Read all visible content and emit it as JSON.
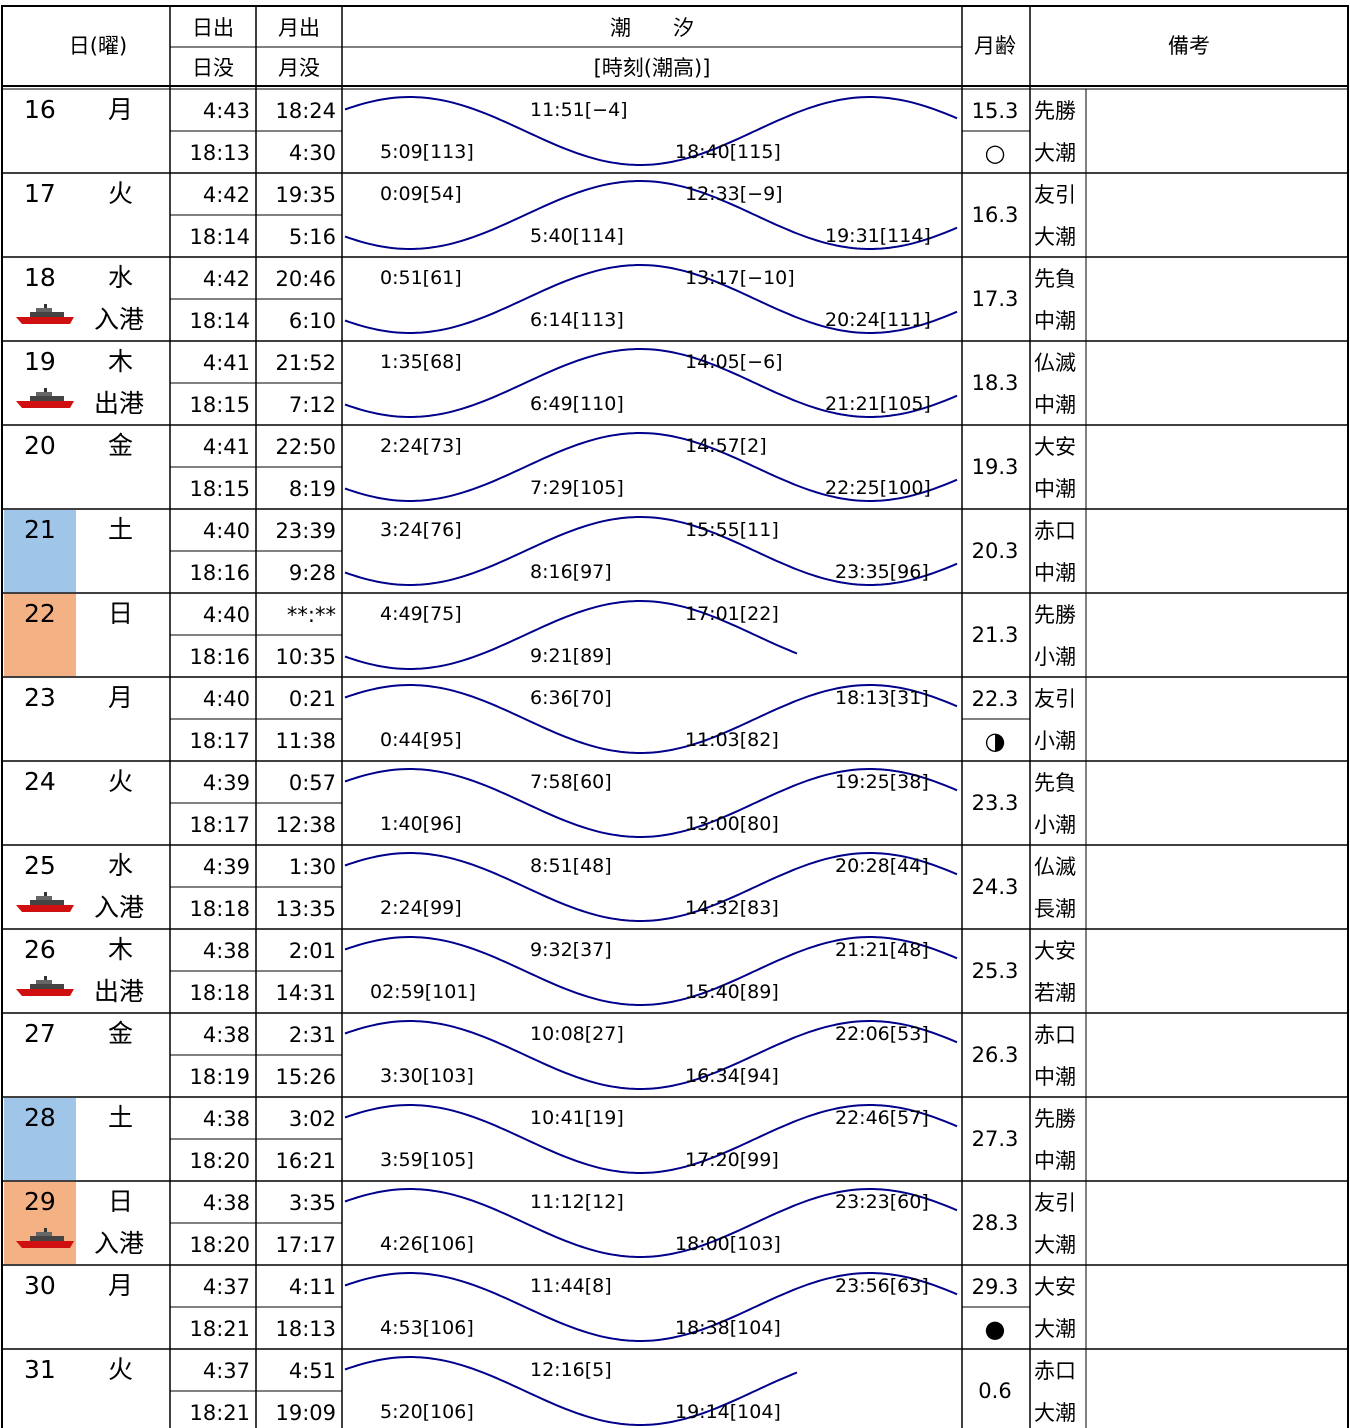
{
  "header": {
    "day": "日(曜)",
    "sunrise": "日出",
    "sunset": "日没",
    "moonrise": "月出",
    "moonset": "月没",
    "tide": "潮　　汐",
    "tide_sub": "[時刻(潮高)]",
    "moon_age": "月齢",
    "remarks": "備考"
  },
  "colors": {
    "saturday": "#9fc5e8",
    "sunday": "#f4b183",
    "tide_curve": "#00008b",
    "ship_hull": "#d01010"
  },
  "rows": [
    {
      "day": "16",
      "dow": "月",
      "note": "",
      "ship": false,
      "hl": "",
      "sunrise": "4:43",
      "moonrise": "18:24",
      "sunset": "18:13",
      "moonset": "4:30",
      "tide": [
        {
          "t": "5:09[113]",
          "pos": "low"
        },
        {
          "t": "11:51[−4]",
          "pos": "high"
        },
        {
          "t": "18:40[115]",
          "pos": "low"
        }
      ],
      "curve": "sine-up",
      "moon": "15.3",
      "moon_symbol": "○",
      "rokuyo": "先勝",
      "shio": "大潮"
    },
    {
      "day": "17",
      "dow": "火",
      "note": "",
      "ship": false,
      "hl": "",
      "sunrise": "4:42",
      "moonrise": "19:35",
      "sunset": "18:14",
      "moonset": "5:16",
      "tide": [
        {
          "t": "0:09[54]",
          "pos": "high"
        },
        {
          "t": "5:40[114]",
          "pos": "low"
        },
        {
          "t": "12:33[−9]",
          "pos": "high"
        },
        {
          "t": "19:31[114]",
          "pos": "low"
        }
      ],
      "curve": "sine-down",
      "moon": "16.3",
      "moon_symbol": "",
      "rokuyo": "友引",
      "shio": "大潮"
    },
    {
      "day": "18",
      "dow": "水",
      "note": "入港",
      "ship": true,
      "hl": "",
      "sunrise": "4:42",
      "moonrise": "20:46",
      "sunset": "18:14",
      "moonset": "6:10",
      "tide": [
        {
          "t": "0:51[61]",
          "pos": "high"
        },
        {
          "t": "6:14[113]",
          "pos": "low"
        },
        {
          "t": "13:17[−10]",
          "pos": "high"
        },
        {
          "t": "20:24[111]",
          "pos": "low"
        }
      ],
      "curve": "sine-down",
      "moon": "17.3",
      "moon_symbol": "",
      "rokuyo": "先負",
      "shio": "中潮"
    },
    {
      "day": "19",
      "dow": "木",
      "note": "出港",
      "ship": true,
      "hl": "",
      "sunrise": "4:41",
      "moonrise": "21:52",
      "sunset": "18:15",
      "moonset": "7:12",
      "tide": [
        {
          "t": "1:35[68]",
          "pos": "high"
        },
        {
          "t": "6:49[110]",
          "pos": "low"
        },
        {
          "t": "14:05[−6]",
          "pos": "high"
        },
        {
          "t": "21:21[105]",
          "pos": "low"
        }
      ],
      "curve": "sine-down",
      "moon": "18.3",
      "moon_symbol": "",
      "rokuyo": "仏滅",
      "shio": "中潮"
    },
    {
      "day": "20",
      "dow": "金",
      "note": "",
      "ship": false,
      "hl": "",
      "sunrise": "4:41",
      "moonrise": "22:50",
      "sunset": "18:15",
      "moonset": "8:19",
      "tide": [
        {
          "t": "2:24[73]",
          "pos": "high"
        },
        {
          "t": "7:29[105]",
          "pos": "low"
        },
        {
          "t": "14:57[2]",
          "pos": "high"
        },
        {
          "t": "22:25[100]",
          "pos": "low"
        }
      ],
      "curve": "sine-down",
      "moon": "19.3",
      "moon_symbol": "",
      "rokuyo": "大安",
      "shio": "中潮"
    },
    {
      "day": "21",
      "dow": "土",
      "note": "",
      "ship": false,
      "hl": "sat",
      "sunrise": "4:40",
      "moonrise": "23:39",
      "sunset": "18:16",
      "moonset": "9:28",
      "tide": [
        {
          "t": "3:24[76]",
          "pos": "high"
        },
        {
          "t": "8:16[97]",
          "pos": "low"
        },
        {
          "t": "15:55[11]",
          "pos": "high"
        },
        {
          "t": "23:35[96]",
          "pos": "low"
        }
      ],
      "curve": "sine-down",
      "moon": "20.3",
      "moon_symbol": "",
      "rokuyo": "赤口",
      "shio": "中潮"
    },
    {
      "day": "22",
      "dow": "日",
      "note": "",
      "ship": false,
      "hl": "sun",
      "sunrise": "4:40",
      "moonrise": "**:**",
      "sunset": "18:16",
      "moonset": "10:35",
      "tide": [
        {
          "t": "4:49[75]",
          "pos": "high"
        },
        {
          "t": "9:21[89]",
          "pos": "low"
        },
        {
          "t": "17:01[22]",
          "pos": "high"
        }
      ],
      "curve": "sine-down-short",
      "moon": "21.3",
      "moon_symbol": "",
      "rokuyo": "先勝",
      "shio": "小潮"
    },
    {
      "day": "23",
      "dow": "月",
      "note": "",
      "ship": false,
      "hl": "",
      "sunrise": "4:40",
      "moonrise": "0:21",
      "sunset": "18:17",
      "moonset": "11:38",
      "tide": [
        {
          "t": "0:44[95]",
          "pos": "low"
        },
        {
          "t": "6:36[70]",
          "pos": "high"
        },
        {
          "t": "11:03[82]",
          "pos": "low"
        },
        {
          "t": "18:13[31]",
          "pos": "high"
        }
      ],
      "curve": "sine-up",
      "moon": "22.3",
      "moon_symbol": "◑",
      "rokuyo": "友引",
      "shio": "小潮"
    },
    {
      "day": "24",
      "dow": "火",
      "note": "",
      "ship": false,
      "hl": "",
      "sunrise": "4:39",
      "moonrise": "0:57",
      "sunset": "18:17",
      "moonset": "12:38",
      "tide": [
        {
          "t": "1:40[96]",
          "pos": "low"
        },
        {
          "t": "7:58[60]",
          "pos": "high"
        },
        {
          "t": "13:00[80]",
          "pos": "low"
        },
        {
          "t": "19:25[38]",
          "pos": "high"
        }
      ],
      "curve": "sine-up",
      "moon": "23.3",
      "moon_symbol": "",
      "rokuyo": "先負",
      "shio": "小潮"
    },
    {
      "day": "25",
      "dow": "水",
      "note": "入港",
      "ship": true,
      "hl": "",
      "sunrise": "4:39",
      "moonrise": "1:30",
      "sunset": "18:18",
      "moonset": "13:35",
      "tide": [
        {
          "t": "2:24[99]",
          "pos": "low"
        },
        {
          "t": "8:51[48]",
          "pos": "high"
        },
        {
          "t": "14:32[83]",
          "pos": "low"
        },
        {
          "t": "20:28[44]",
          "pos": "high"
        }
      ],
      "curve": "sine-up",
      "moon": "24.3",
      "moon_symbol": "",
      "rokuyo": "仏滅",
      "shio": "長潮"
    },
    {
      "day": "26",
      "dow": "木",
      "note": "出港",
      "ship": true,
      "hl": "",
      "sunrise": "4:38",
      "moonrise": "2:01",
      "sunset": "18:18",
      "moonset": "14:31",
      "tide": [
        {
          "t": "02:59[101]",
          "pos": "low"
        },
        {
          "t": "9:32[37]",
          "pos": "high"
        },
        {
          "t": "15:40[89]",
          "pos": "low"
        },
        {
          "t": "21:21[48]",
          "pos": "high"
        }
      ],
      "curve": "sine-up",
      "moon": "25.3",
      "moon_symbol": "",
      "rokuyo": "大安",
      "shio": "若潮"
    },
    {
      "day": "27",
      "dow": "金",
      "note": "",
      "ship": false,
      "hl": "",
      "sunrise": "4:38",
      "moonrise": "2:31",
      "sunset": "18:19",
      "moonset": "15:26",
      "tide": [
        {
          "t": "3:30[103]",
          "pos": "low"
        },
        {
          "t": "10:08[27]",
          "pos": "high"
        },
        {
          "t": "16:34[94]",
          "pos": "low"
        },
        {
          "t": "22:06[53]",
          "pos": "high"
        }
      ],
      "curve": "sine-up",
      "moon": "26.3",
      "moon_symbol": "",
      "rokuyo": "赤口",
      "shio": "中潮"
    },
    {
      "day": "28",
      "dow": "土",
      "note": "",
      "ship": false,
      "hl": "sat",
      "sunrise": "4:38",
      "moonrise": "3:02",
      "sunset": "18:20",
      "moonset": "16:21",
      "tide": [
        {
          "t": "3:59[105]",
          "pos": "low"
        },
        {
          "t": "10:41[19]",
          "pos": "high"
        },
        {
          "t": "17:20[99]",
          "pos": "low"
        },
        {
          "t": "22:46[57]",
          "pos": "high"
        }
      ],
      "curve": "sine-up",
      "moon": "27.3",
      "moon_symbol": "",
      "rokuyo": "先勝",
      "shio": "中潮"
    },
    {
      "day": "29",
      "dow": "日",
      "note": "入港",
      "ship": true,
      "hl": "sun",
      "sunrise": "4:38",
      "moonrise": "3:35",
      "sunset": "18:20",
      "moonset": "17:17",
      "tide": [
        {
          "t": "4:26[106]",
          "pos": "low"
        },
        {
          "t": "11:12[12]",
          "pos": "high"
        },
        {
          "t": "18:00[103]",
          "pos": "low"
        },
        {
          "t": "23:23[60]",
          "pos": "high"
        }
      ],
      "curve": "sine-up",
      "moon": "28.3",
      "moon_symbol": "",
      "rokuyo": "友引",
      "shio": "大潮"
    },
    {
      "day": "30",
      "dow": "月",
      "note": "",
      "ship": false,
      "hl": "",
      "sunrise": "4:37",
      "moonrise": "4:11",
      "sunset": "18:21",
      "moonset": "18:13",
      "tide": [
        {
          "t": "4:53[106]",
          "pos": "low"
        },
        {
          "t": "11:44[8]",
          "pos": "high"
        },
        {
          "t": "18:38[104]",
          "pos": "low"
        },
        {
          "t": "23:56[63]",
          "pos": "high"
        }
      ],
      "curve": "sine-up",
      "moon": "29.3",
      "moon_symbol": "●",
      "rokuyo": "大安",
      "shio": "大潮"
    },
    {
      "day": "31",
      "dow": "火",
      "note": "",
      "ship": false,
      "hl": "",
      "sunrise": "4:37",
      "moonrise": "4:51",
      "sunset": "18:21",
      "moonset": "19:09",
      "tide": [
        {
          "t": "5:20[106]",
          "pos": "low"
        },
        {
          "t": "12:16[5]",
          "pos": "high"
        },
        {
          "t": "19:14[104]",
          "pos": "low"
        }
      ],
      "curve": "sine-up-short",
      "moon": "0.6",
      "moon_symbol": "",
      "rokuyo": "赤口",
      "shio": "大潮"
    }
  ]
}
